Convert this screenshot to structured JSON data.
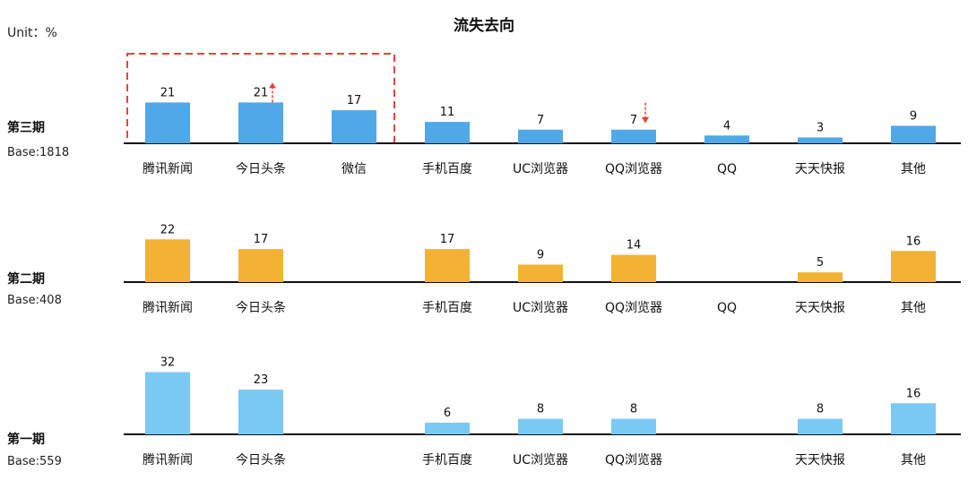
{
  "unit_label": "Unit：%",
  "chart_data": {
    "type": "bar",
    "title": "流失去向",
    "categories": [
      "腾讯新闻",
      "今日头条",
      "微信",
      "手机百度",
      "UC浏览器",
      "QQ浏览器",
      "QQ",
      "天天快报",
      "其他"
    ],
    "panels": [
      {
        "period": "第三期",
        "base": "Base:1818",
        "color": "#4fa8e8",
        "values": [
          21,
          21,
          17,
          11,
          7,
          7,
          4,
          3,
          9
        ],
        "labels": [
          "腾讯新闻",
          "今日头条",
          "微信",
          "手机百度",
          "UC浏览器",
          "QQ浏览器",
          "QQ",
          "天天快报",
          "其他"
        ],
        "trend_up": [
          "今日头条"
        ],
        "trend_down": [
          "QQ浏览器"
        ]
      },
      {
        "period": "第二期",
        "base": "Base:408",
        "color": "#f2b233",
        "values": [
          22,
          17,
          null,
          17,
          9,
          14,
          null,
          5,
          16
        ],
        "labels": [
          "腾讯新闻",
          "今日头条",
          "",
          "手机百度",
          "UC浏览器",
          "QQ浏览器",
          "QQ",
          "天天快报",
          "其他"
        ],
        "trend_up": [],
        "trend_down": []
      },
      {
        "period": "第一期",
        "base": "Base:559",
        "color": "#7cc8f5",
        "values": [
          32,
          23,
          null,
          6,
          8,
          8,
          null,
          8,
          16
        ],
        "labels": [
          "腾讯新闻",
          "今日头条",
          "",
          "手机百度",
          "UC浏览器",
          "QQ浏览器",
          "",
          "天天快报",
          "其他"
        ],
        "trend_up": [],
        "trend_down": []
      }
    ],
    "highlight": [
      "腾讯新闻",
      "今日头条",
      "微信"
    ],
    "highlight_color": "#e0463a",
    "grid": false,
    "legend": "none"
  }
}
